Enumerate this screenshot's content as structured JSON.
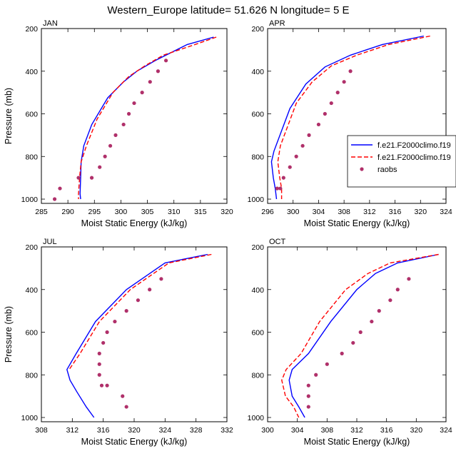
{
  "figure": {
    "title": "Western_Europe  latitude= 51.626 N longitude= 5 E"
  },
  "colors": {
    "model1": "#0000ff",
    "model2": "#ff0000",
    "raobs": "#b0306a"
  },
  "legend": {
    "entries": [
      {
        "label": "f.e21.F2000climo.f19",
        "style": "solid",
        "color": "#0000ff"
      },
      {
        "label": "f.e21.F2000climo.f19",
        "style": "dashed",
        "color": "#ff0000"
      },
      {
        "label": "raobs",
        "style": "marker",
        "color": "#b0306a"
      }
    ]
  },
  "chart_data": [
    {
      "type": "line",
      "title": "JAN",
      "xlabel": "Moist Static Energy (kJ/kg)",
      "ylabel": "Pressure (mb)",
      "xlim": [
        285,
        320
      ],
      "ylim": [
        1020,
        200
      ],
      "xticks": [
        285,
        290,
        295,
        300,
        305,
        310,
        315,
        320
      ],
      "yticks": [
        200,
        400,
        600,
        800,
        1000
      ],
      "series": [
        {
          "name": "f.e21.F2000climo.f19 (solid)",
          "style": "solid",
          "x": [
            317.5,
            312.5,
            306.5,
            303.0,
            300.5,
            297.5,
            294.5,
            293.0,
            292.5,
            292.4,
            292.3,
            292.4
          ],
          "y": [
            240,
            275,
            350,
            400,
            450,
            525,
            650,
            750,
            825,
            900,
            975,
            1000
          ]
        },
        {
          "name": "f.e21.F2000climo.f19 (dashed)",
          "style": "dashed",
          "x": [
            318.0,
            314.0,
            308.0,
            304.5,
            301.5,
            298.5,
            295.5,
            293.5,
            292.5,
            292.2,
            292.0,
            292.0
          ],
          "y": [
            240,
            275,
            325,
            375,
            425,
            500,
            625,
            750,
            825,
            900,
            975,
            1000
          ]
        },
        {
          "name": "raobs",
          "style": "marker",
          "x": [
            308.5,
            307.0,
            305.5,
            304.0,
            302.5,
            301.5,
            300.5,
            299.0,
            298.0,
            297.0,
            296.0,
            294.5,
            292.0,
            288.5,
            287.5
          ],
          "y": [
            350,
            400,
            450,
            500,
            550,
            600,
            650,
            700,
            750,
            800,
            850,
            900,
            900,
            950,
            1000
          ]
        }
      ]
    },
    {
      "type": "line",
      "title": "APR",
      "xlabel": "Moist Static Energy (kJ/kg)",
      "ylabel": "Pressure (mb)",
      "xlim": [
        296,
        324
      ],
      "ylim": [
        1020,
        200
      ],
      "xticks": [
        296,
        300,
        304,
        308,
        312,
        316,
        320,
        324
      ],
      "yticks": [
        200,
        400,
        600,
        800,
        1000
      ],
      "series": [
        {
          "name": "f.e21.F2000climo.f19 (solid)",
          "style": "solid",
          "x": [
            320.5,
            314.0,
            309.0,
            305.0,
            302.0,
            299.5,
            297.0,
            296.6,
            296.9,
            297.2,
            297.4
          ],
          "y": [
            235,
            275,
            325,
            380,
            460,
            575,
            775,
            825,
            900,
            950,
            1000
          ]
        },
        {
          "name": "f.e21.F2000climo.f19 (dashed)",
          "style": "dashed",
          "x": [
            321.5,
            315.0,
            310.0,
            306.0,
            303.0,
            300.5,
            298.0,
            297.6,
            297.9,
            298.2,
            298.2
          ],
          "y": [
            235,
            275,
            325,
            375,
            450,
            550,
            750,
            825,
            900,
            950,
            1000
          ]
        },
        {
          "name": "raobs",
          "style": "marker",
          "x": [
            309.0,
            308.0,
            307.0,
            306.0,
            305.0,
            304.0,
            302.5,
            301.5,
            300.5,
            299.5,
            298.5,
            298.0,
            297.5,
            297.5
          ],
          "y": [
            400,
            450,
            500,
            550,
            600,
            650,
            700,
            750,
            800,
            850,
            900,
            950,
            950,
            950
          ]
        }
      ]
    },
    {
      "type": "line",
      "title": "JUL",
      "xlabel": "Moist Static Energy (kJ/kg)",
      "ylabel": "Pressure (mb)",
      "xlim": [
        308,
        332
      ],
      "ylim": [
        1020,
        200
      ],
      "xticks": [
        308,
        312,
        316,
        320,
        324,
        328,
        332
      ],
      "yticks": [
        200,
        400,
        600,
        800,
        1000
      ],
      "series": [
        {
          "name": "f.e21.F2000climo.f19 (solid)",
          "style": "solid",
          "x": [
            329.5,
            324.0,
            322.0,
            319.0,
            315.0,
            312.5,
            311.3,
            311.7,
            312.6,
            313.8,
            314.8
          ],
          "y": [
            235,
            275,
            325,
            400,
            550,
            700,
            775,
            825,
            880,
            950,
            1000
          ]
        },
        {
          "name": "f.e21.F2000climo.f19 (dashed)",
          "style": "dashed",
          "x": [
            330.0,
            324.5,
            322.5,
            319.5,
            315.5,
            313.0,
            311.6
          ],
          "y": [
            235,
            275,
            325,
            400,
            550,
            700,
            775
          ]
        },
        {
          "name": "raobs",
          "style": "marker",
          "x": [
            323.5,
            322.0,
            320.5,
            319.0,
            317.5,
            316.5,
            316.0,
            315.5,
            315.5,
            315.5,
            315.8,
            316.5,
            318.5,
            319.0
          ],
          "y": [
            350,
            400,
            450,
            500,
            550,
            600,
            650,
            700,
            750,
            800,
            850,
            850,
            900,
            950
          ]
        }
      ]
    },
    {
      "type": "line",
      "title": "OCT",
      "xlabel": "Moist Static Energy (kJ/kg)",
      "ylabel": "Pressure (mb)",
      "xlim": [
        300,
        324
      ],
      "ylim": [
        1020,
        200
      ],
      "xticks": [
        300,
        304,
        308,
        312,
        316,
        320,
        324
      ],
      "yticks": [
        200,
        400,
        600,
        800,
        1000
      ],
      "series": [
        {
          "name": "f.e21.F2000climo.f19 (solid)",
          "style": "solid",
          "x": [
            323.0,
            317.5,
            314.5,
            312.0,
            308.5,
            305.5,
            303.3,
            302.9,
            303.3,
            304.2,
            305.0
          ],
          "y": [
            235,
            275,
            325,
            400,
            550,
            700,
            775,
            825,
            900,
            950,
            1000
          ]
        },
        {
          "name": "f.e21.F2000climo.f19 (dashed)",
          "style": "dashed",
          "x": [
            323.0,
            316.5,
            313.5,
            310.5,
            307.0,
            304.5,
            302.5,
            301.9,
            302.4,
            303.5,
            304.2
          ],
          "y": [
            235,
            275,
            325,
            400,
            550,
            700,
            775,
            825,
            900,
            950,
            1000
          ]
        },
        {
          "name": "raobs",
          "style": "marker",
          "x": [
            319.0,
            317.5,
            316.5,
            315.0,
            314.0,
            312.5,
            311.5,
            310.0,
            308.0,
            306.5,
            305.5,
            305.5,
            305.5
          ],
          "y": [
            350,
            400,
            450,
            500,
            550,
            600,
            650,
            700,
            750,
            800,
            850,
            900,
            950
          ]
        }
      ]
    }
  ]
}
